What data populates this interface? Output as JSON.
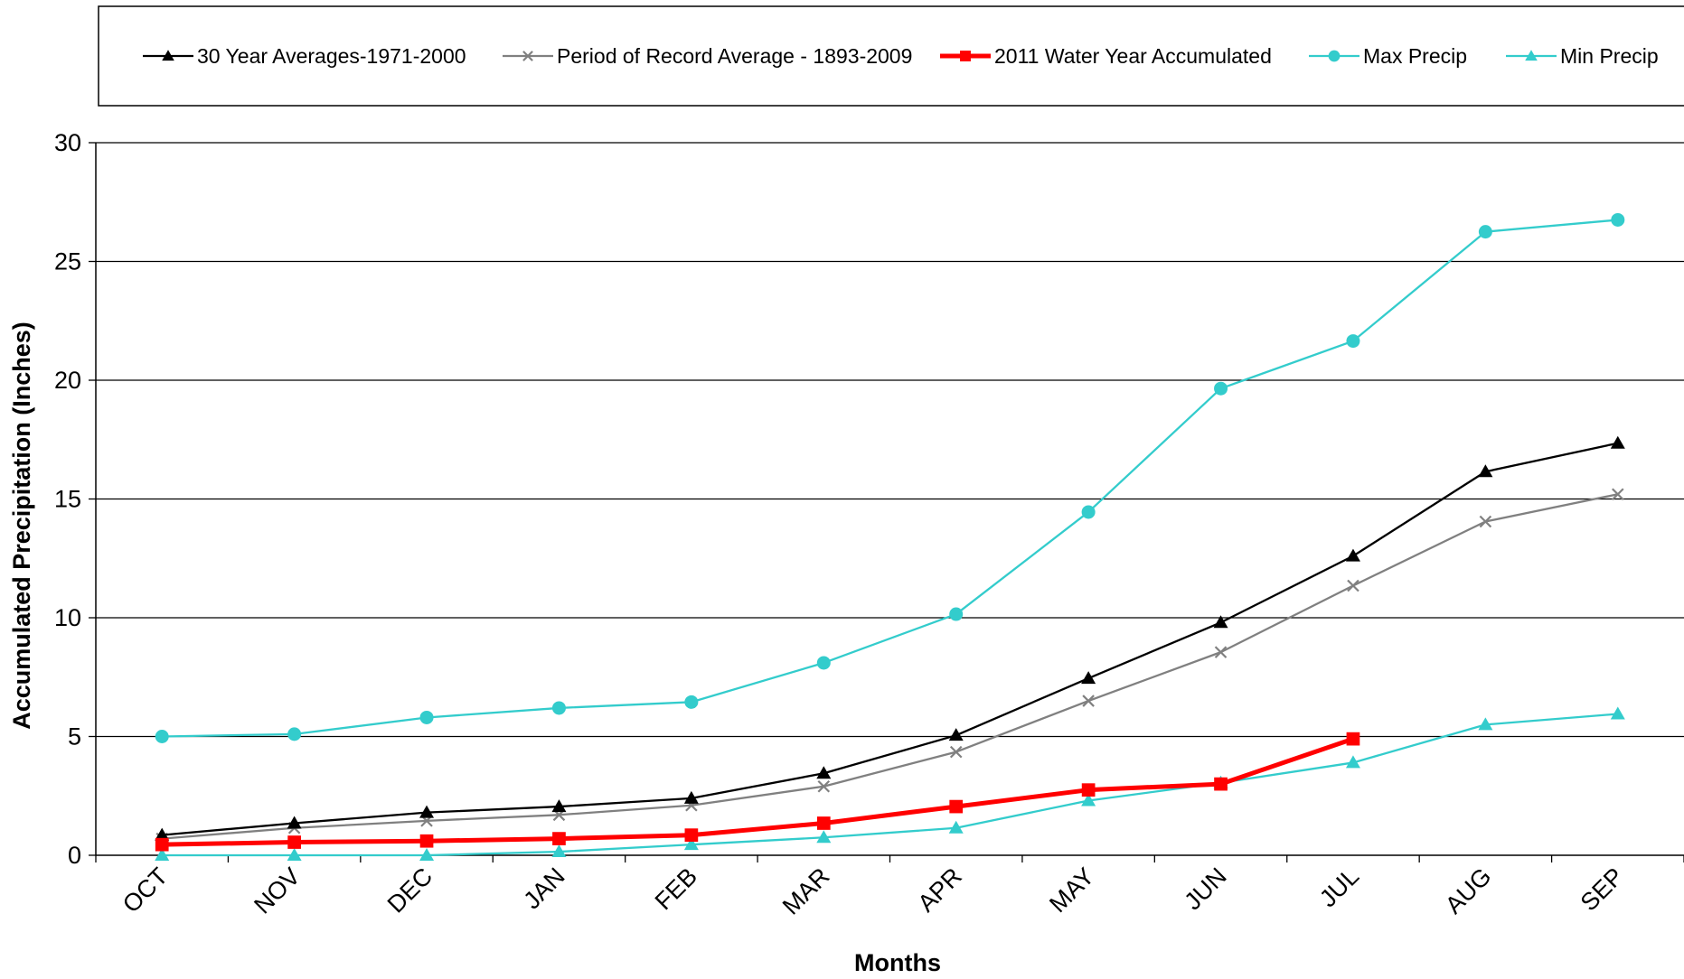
{
  "chart_data": {
    "type": "line",
    "title": "",
    "xlabel": "Months",
    "ylabel": "Accumulated Precipitation (Inches)",
    "ylim": [
      0,
      30
    ],
    "yticks": [
      0,
      5,
      10,
      15,
      20,
      25,
      30
    ],
    "grid": "horizontal",
    "legend_position": "top",
    "categories": [
      "OCT",
      "NOV",
      "DEC",
      "JAN",
      "FEB",
      "MAR",
      "APR",
      "MAY",
      "JUN",
      "JUL",
      "AUG",
      "SEP"
    ],
    "series": [
      {
        "name": "30 Year Averages-1971-2000",
        "color": "#000000",
        "marker": "triangle",
        "values": [
          0.85,
          1.35,
          1.8,
          2.05,
          2.4,
          3.45,
          5.05,
          7.45,
          9.8,
          12.6,
          16.15,
          17.35
        ]
      },
      {
        "name": "Period of Record Average - 1893-2009",
        "color": "#808080",
        "marker": "x",
        "values": [
          0.7,
          1.15,
          1.45,
          1.7,
          2.1,
          2.9,
          4.35,
          6.5,
          8.55,
          11.35,
          14.05,
          15.2
        ]
      },
      {
        "name": "2011 Water Year Accumulated",
        "color": "#ff0000",
        "marker": "square",
        "values": [
          0.45,
          0.55,
          0.6,
          0.7,
          0.85,
          1.35,
          2.05,
          2.75,
          3.0,
          4.9,
          null,
          null
        ]
      },
      {
        "name": "Max Precip",
        "color": "#33cccc",
        "marker": "circle",
        "values": [
          5.0,
          5.1,
          5.8,
          6.2,
          6.45,
          8.1,
          10.15,
          14.45,
          19.65,
          21.65,
          26.25,
          26.75
        ]
      },
      {
        "name": "Min Precip",
        "color": "#33cccc",
        "marker": "triangle",
        "values": [
          0.0,
          0.0,
          0.0,
          0.15,
          0.45,
          0.75,
          1.15,
          2.3,
          3.05,
          3.9,
          5.5,
          5.95
        ]
      }
    ]
  }
}
